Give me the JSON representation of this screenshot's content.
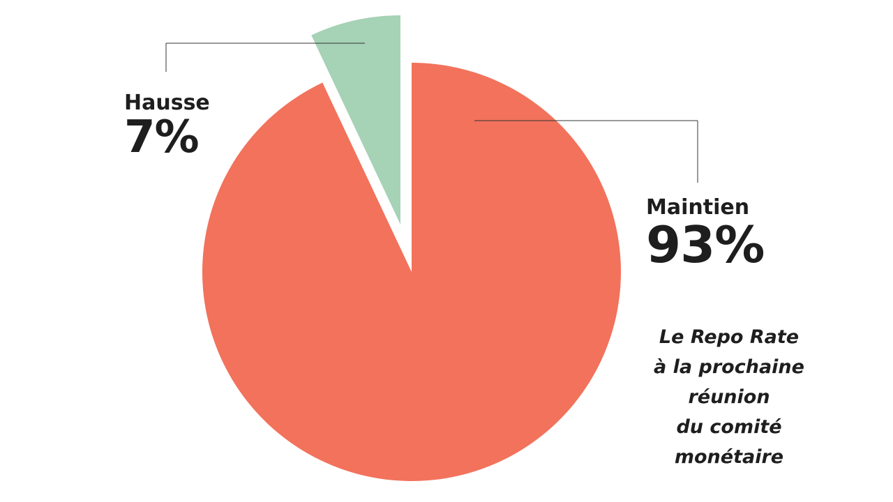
{
  "chart_data": {
    "type": "pie",
    "slices": [
      {
        "label": "Maintien",
        "value": 93,
        "value_label": "93%",
        "color": "#f2725c",
        "exploded": false
      },
      {
        "label": "Hausse",
        "value": 7,
        "value_label": "7%",
        "color": "#a6d2b6",
        "exploded": true
      }
    ],
    "annotation": "Le Repo Rate\nà la prochaine\nréunion\ndu comité\nmonétaire",
    "legend": "none"
  }
}
